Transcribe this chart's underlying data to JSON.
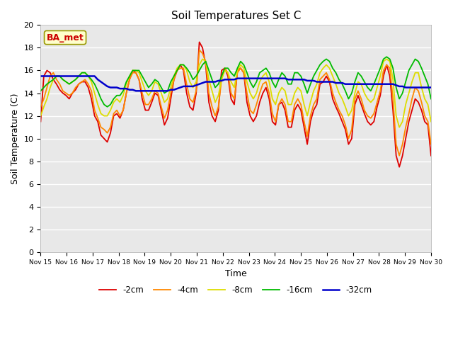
{
  "title": "Soil Temperatures Set C",
  "xlabel": "Time",
  "ylabel": "Soil Temperature (C)",
  "bg_color": "#e8e8e8",
  "annotation_text": "BA_met",
  "annotation_bg": "#ffffcc",
  "annotation_border": "#999900",
  "annotation_text_color": "#cc0000",
  "ylim": [
    0,
    20
  ],
  "yticks": [
    0,
    2,
    4,
    6,
    8,
    10,
    12,
    14,
    16,
    18,
    20
  ],
  "xtick_labels": [
    "Nov 15",
    "Nov 16",
    "Nov 17",
    "Nov 18",
    "Nov 19",
    "Nov 20",
    "Nov 21",
    "Nov 22",
    "Nov 23",
    "Nov 24",
    "Nov 25",
    "Nov 26",
    "Nov 27",
    "Nov 28",
    "Nov 29",
    "Nov 30"
  ],
  "legend_labels": [
    "-2cm",
    "-4cm",
    "-8cm",
    "-16cm",
    "-32cm"
  ],
  "line_colors": [
    "#dd0000",
    "#ff8800",
    "#dddd00",
    "#00bb00",
    "#0000cc"
  ],
  "line_widths": [
    1.3,
    1.3,
    1.3,
    1.3,
    1.8
  ],
  "n_days": 15,
  "depth_2cm": [
    11.5,
    15.5,
    16.0,
    15.8,
    15.2,
    14.8,
    14.3,
    14.0,
    13.8,
    13.5,
    14.0,
    14.3,
    14.8,
    15.0,
    15.0,
    14.5,
    13.5,
    12.0,
    11.5,
    10.3,
    10.0,
    9.7,
    10.5,
    12.0,
    12.2,
    11.8,
    12.5,
    14.0,
    15.2,
    16.0,
    15.8,
    15.2,
    13.5,
    12.5,
    12.5,
    13.2,
    14.0,
    13.8,
    12.5,
    11.2,
    11.8,
    13.5,
    15.2,
    16.0,
    16.5,
    16.0,
    14.0,
    12.8,
    12.5,
    14.0,
    18.5,
    18.0,
    16.5,
    13.2,
    12.0,
    11.5,
    12.5,
    16.0,
    16.2,
    15.5,
    13.5,
    13.0,
    16.0,
    16.2,
    15.8,
    13.2,
    12.0,
    11.5,
    12.0,
    13.2,
    14.0,
    14.5,
    13.5,
    11.5,
    11.2,
    13.0,
    13.2,
    12.5,
    11.0,
    11.0,
    12.5,
    13.0,
    12.5,
    11.0,
    9.5,
    11.5,
    12.5,
    13.0,
    14.8,
    15.0,
    15.5,
    15.0,
    13.5,
    12.8,
    12.2,
    11.5,
    10.8,
    9.5,
    10.0,
    13.0,
    13.8,
    13.0,
    12.2,
    11.5,
    11.2,
    11.5,
    12.8,
    13.8,
    15.5,
    16.5,
    15.5,
    12.5,
    8.5,
    7.5,
    8.5,
    10.0,
    11.5,
    12.5,
    13.5,
    13.2,
    12.5,
    11.5,
    11.2,
    8.5
  ],
  "depth_4cm": [
    12.8,
    13.5,
    14.5,
    15.5,
    15.8,
    15.2,
    14.8,
    14.2,
    14.0,
    13.8,
    14.0,
    14.5,
    14.8,
    15.0,
    15.2,
    14.8,
    14.2,
    12.5,
    11.8,
    11.0,
    10.8,
    10.5,
    11.0,
    12.2,
    12.5,
    12.0,
    12.5,
    14.0,
    15.2,
    15.8,
    15.8,
    15.2,
    14.0,
    13.0,
    13.0,
    13.5,
    14.2,
    14.0,
    12.8,
    11.8,
    12.5,
    14.0,
    15.2,
    16.0,
    16.2,
    16.2,
    14.8,
    13.5,
    13.2,
    14.2,
    17.8,
    17.5,
    16.8,
    14.0,
    12.8,
    12.0,
    12.8,
    15.2,
    16.2,
    15.8,
    14.0,
    13.5,
    15.8,
    16.2,
    15.8,
    14.0,
    12.5,
    12.2,
    13.0,
    14.0,
    14.8,
    15.0,
    14.0,
    12.2,
    11.5,
    13.0,
    13.5,
    13.0,
    11.5,
    11.5,
    13.0,
    13.5,
    13.0,
    11.5,
    10.2,
    12.0,
    13.0,
    13.5,
    15.2,
    15.5,
    15.8,
    15.2,
    14.0,
    13.2,
    12.5,
    12.0,
    11.2,
    10.0,
    10.8,
    13.5,
    14.2,
    13.5,
    12.5,
    12.0,
    11.8,
    12.2,
    13.2,
    14.2,
    16.0,
    16.5,
    16.2,
    13.5,
    9.5,
    8.5,
    9.5,
    11.0,
    12.2,
    13.5,
    14.5,
    14.2,
    13.2,
    12.0,
    11.5,
    9.5
  ],
  "depth_8cm": [
    12.0,
    12.8,
    13.5,
    14.5,
    15.2,
    15.5,
    15.5,
    15.2,
    15.0,
    14.8,
    15.0,
    15.2,
    15.5,
    15.8,
    15.8,
    15.5,
    15.0,
    14.0,
    13.0,
    12.2,
    12.0,
    12.0,
    12.5,
    13.2,
    13.5,
    13.2,
    13.8,
    14.8,
    15.5,
    16.0,
    16.0,
    15.8,
    15.0,
    14.2,
    13.8,
    14.2,
    15.0,
    14.8,
    14.0,
    13.2,
    13.5,
    14.5,
    15.5,
    16.2,
    16.5,
    16.5,
    16.0,
    15.0,
    14.5,
    15.0,
    16.5,
    17.0,
    16.8,
    15.2,
    14.2,
    13.2,
    13.8,
    15.2,
    16.0,
    15.8,
    15.0,
    14.5,
    16.0,
    16.5,
    16.2,
    15.0,
    14.0,
    13.5,
    14.0,
    15.0,
    15.5,
    15.8,
    15.0,
    13.5,
    13.0,
    14.0,
    14.5,
    14.2,
    13.0,
    13.0,
    14.0,
    14.5,
    14.2,
    13.0,
    12.0,
    13.2,
    14.2,
    14.8,
    15.8,
    16.2,
    16.5,
    16.2,
    15.5,
    14.8,
    14.0,
    13.5,
    12.8,
    12.0,
    12.5,
    14.0,
    15.0,
    14.8,
    14.0,
    13.5,
    13.2,
    13.5,
    14.5,
    15.5,
    16.8,
    17.0,
    16.8,
    15.2,
    12.0,
    11.0,
    11.5,
    13.0,
    14.0,
    15.0,
    15.8,
    15.8,
    14.5,
    13.5,
    13.0,
    11.5
  ],
  "depth_16cm": [
    14.2,
    14.5,
    14.8,
    15.0,
    15.2,
    15.5,
    15.5,
    15.2,
    15.0,
    14.8,
    15.0,
    15.2,
    15.5,
    15.8,
    15.8,
    15.5,
    15.2,
    14.8,
    14.2,
    13.5,
    13.0,
    12.8,
    13.0,
    13.5,
    13.8,
    13.8,
    14.2,
    15.0,
    15.5,
    16.0,
    16.0,
    16.0,
    15.5,
    15.0,
    14.5,
    14.8,
    15.2,
    15.0,
    14.5,
    14.0,
    14.2,
    15.0,
    15.5,
    16.0,
    16.5,
    16.5,
    16.2,
    15.8,
    15.2,
    15.5,
    16.0,
    16.5,
    16.8,
    16.0,
    15.2,
    14.5,
    14.8,
    15.5,
    16.2,
    16.2,
    15.8,
    15.5,
    16.2,
    16.8,
    16.5,
    15.8,
    15.0,
    14.5,
    15.0,
    15.8,
    16.0,
    16.2,
    15.8,
    15.0,
    14.5,
    15.2,
    15.8,
    15.5,
    14.8,
    14.8,
    15.8,
    15.8,
    15.5,
    14.8,
    14.0,
    14.8,
    15.5,
    16.0,
    16.5,
    16.8,
    17.0,
    16.8,
    16.2,
    15.8,
    15.2,
    14.8,
    14.2,
    13.5,
    14.0,
    15.0,
    15.8,
    15.5,
    15.0,
    14.5,
    14.2,
    14.8,
    15.5,
    16.2,
    17.0,
    17.2,
    17.0,
    16.2,
    14.5,
    13.5,
    14.0,
    15.0,
    16.0,
    16.5,
    17.0,
    16.8,
    16.2,
    15.5,
    14.8,
    13.5
  ],
  "depth_32cm": [
    15.5,
    15.5,
    15.5,
    15.5,
    15.5,
    15.5,
    15.5,
    15.5,
    15.5,
    15.5,
    15.5,
    15.5,
    15.5,
    15.5,
    15.5,
    15.5,
    15.5,
    15.5,
    15.2,
    15.0,
    14.8,
    14.6,
    14.5,
    14.5,
    14.5,
    14.4,
    14.4,
    14.4,
    14.3,
    14.3,
    14.2,
    14.2,
    14.2,
    14.2,
    14.2,
    14.2,
    14.2,
    14.2,
    14.2,
    14.2,
    14.2,
    14.3,
    14.3,
    14.4,
    14.5,
    14.6,
    14.6,
    14.6,
    14.6,
    14.7,
    14.8,
    14.9,
    15.0,
    15.0,
    15.0,
    15.0,
    15.1,
    15.1,
    15.2,
    15.2,
    15.2,
    15.2,
    15.3,
    15.3,
    15.3,
    15.3,
    15.3,
    15.3,
    15.3,
    15.3,
    15.3,
    15.3,
    15.3,
    15.3,
    15.3,
    15.3,
    15.3,
    15.3,
    15.2,
    15.2,
    15.2,
    15.2,
    15.2,
    15.2,
    15.1,
    15.1,
    15.1,
    15.0,
    15.0,
    15.0,
    15.0,
    15.0,
    15.0,
    14.9,
    14.9,
    14.9,
    14.8,
    14.8,
    14.8,
    14.8,
    14.8,
    14.8,
    14.8,
    14.8,
    14.8,
    14.8,
    14.8,
    14.8,
    14.8,
    14.8,
    14.8,
    14.8,
    14.7,
    14.6,
    14.6,
    14.5,
    14.5,
    14.5,
    14.5,
    14.5,
    14.5,
    14.5,
    14.5,
    14.5
  ]
}
